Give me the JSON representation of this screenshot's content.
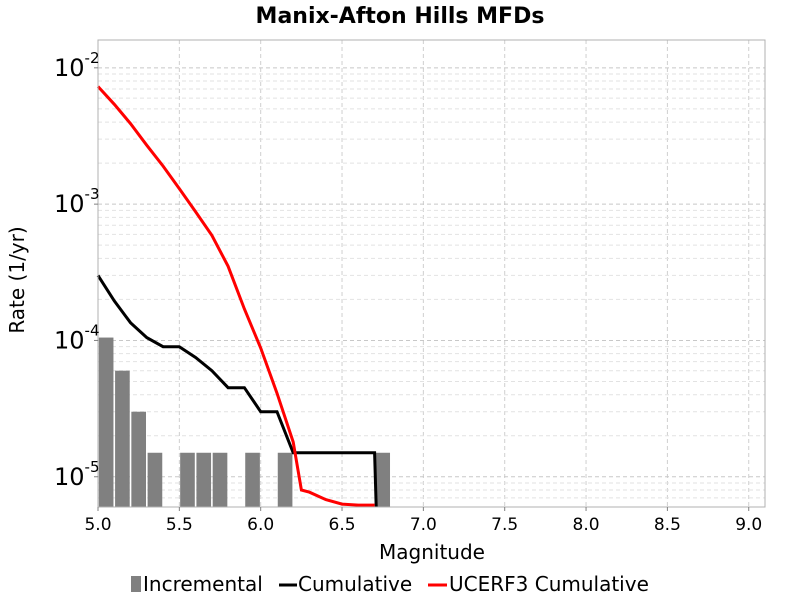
{
  "chart_data": {
    "type": "line",
    "title": "Manix-Afton Hills MFDs",
    "xlabel": "Magnitude",
    "ylabel": "Rate (1/yr)",
    "xlim": [
      5.0,
      9.1
    ],
    "ylim": [
      6e-06,
      0.016
    ],
    "yscale": "log",
    "grid": true,
    "legend_position": "bottom",
    "x_ticks": [
      "5.0",
      "5.5",
      "6.0",
      "6.5",
      "7.0",
      "7.5",
      "8.0",
      "8.5",
      "9.0"
    ],
    "y_ticks": [
      {
        "base": "10",
        "exp": "-5",
        "value": 1e-05
      },
      {
        "base": "10",
        "exp": "-4",
        "value": 0.0001
      },
      {
        "base": "10",
        "exp": "-3",
        "value": 0.001
      },
      {
        "base": "10",
        "exp": "-2",
        "value": 0.01
      }
    ],
    "series": [
      {
        "name": "Incremental",
        "kind": "bar",
        "color": "#808080",
        "bar_width": 0.09,
        "x": [
          5.05,
          5.15,
          5.25,
          5.35,
          5.55,
          5.65,
          5.75,
          5.95,
          6.15,
          6.75
        ],
        "y": [
          0.000105,
          6e-05,
          3e-05,
          1.5e-05,
          1.5e-05,
          1.5e-05,
          1.5e-05,
          1.5e-05,
          1.5e-05,
          1.5e-05
        ]
      },
      {
        "name": "Cumulative",
        "kind": "line",
        "color": "#000000",
        "x": [
          5.0,
          5.1,
          5.2,
          5.3,
          5.4,
          5.5,
          5.6,
          5.7,
          5.8,
          5.9,
          6.0,
          6.1,
          6.2,
          6.3,
          6.4,
          6.5,
          6.6,
          6.7,
          6.71
        ],
        "y": [
          0.0003,
          0.000195,
          0.000135,
          0.000105,
          9e-05,
          9e-05,
          7.5e-05,
          6e-05,
          4.5e-05,
          4.5e-05,
          3e-05,
          3e-05,
          1.5e-05,
          1.5e-05,
          1.5e-05,
          1.5e-05,
          1.5e-05,
          1.5e-05,
          6e-06
        ]
      },
      {
        "name": "UCERF3 Cumulative",
        "kind": "line",
        "color": "#ff0000",
        "x": [
          5.0,
          5.1,
          5.2,
          5.3,
          5.4,
          5.5,
          5.6,
          5.7,
          5.8,
          5.9,
          6.0,
          6.1,
          6.2,
          6.25,
          6.3,
          6.4,
          6.5,
          6.6,
          6.7
        ],
        "y": [
          0.0073,
          0.0054,
          0.0039,
          0.0027,
          0.0019,
          0.0013,
          0.00088,
          0.00059,
          0.00035,
          0.00017,
          8.8e-05,
          4.1e-05,
          1.8e-05,
          8e-06,
          7.7e-06,
          6.8e-06,
          6.3e-06,
          6.2e-06,
          6.2e-06
        ]
      }
    ]
  }
}
